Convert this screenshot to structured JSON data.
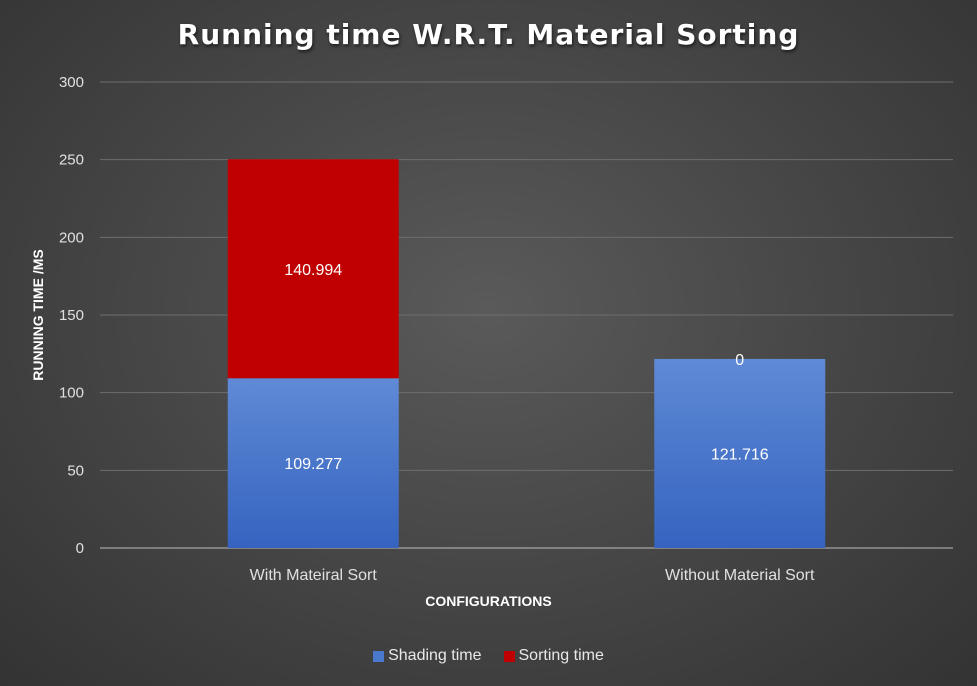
{
  "chart_data": {
    "type": "bar",
    "stacked": true,
    "title": "Running time W.R.T. Material Sorting",
    "xlabel": "CONFIGURATIONS",
    "ylabel": "RUNNING TIME /MS",
    "ylim": [
      0,
      300
    ],
    "yticks": [
      0,
      50,
      100,
      150,
      200,
      250,
      300
    ],
    "grid": true,
    "legend_position": "bottom",
    "categories": [
      "With Mateiral Sort",
      "Without Material Sort"
    ],
    "series": [
      {
        "name": "Shading time",
        "values": [
          109.277,
          121.716
        ],
        "labels": [
          "109.277",
          "121.716"
        ],
        "color": "#4a78cc"
      },
      {
        "name": "Sorting time",
        "values": [
          140.994,
          0
        ],
        "labels": [
          "140.994",
          "0"
        ],
        "color": "#c00000"
      }
    ]
  }
}
